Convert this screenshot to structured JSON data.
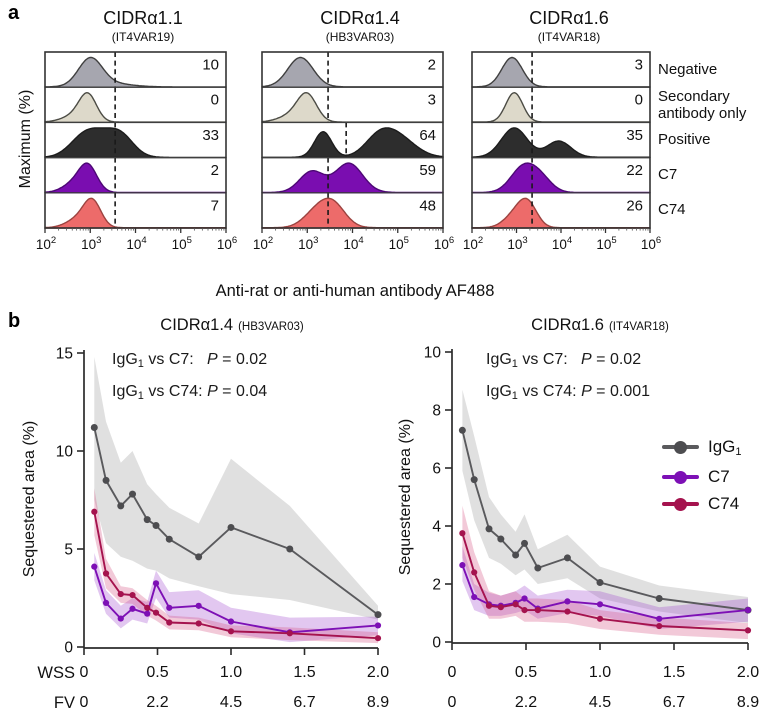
{
  "figure": {
    "panel_a_label": "a",
    "panel_b_label": "b"
  },
  "colors": {
    "igg": "#5a5a5d",
    "igg_marker": "#4d4d50",
    "c7": "#7d10b5",
    "c74": "#a5134e",
    "igg_band": "rgba(178,178,178,0.40)",
    "c7_band": "rgba(158,70,205,0.30)",
    "c74_band": "rgba(214,88,134,0.32)",
    "hist_rows": [
      {
        "fill": "#a6a6af",
        "stroke": "#3f3f3f"
      },
      {
        "fill": "#ddd9ca",
        "stroke": "#4c4c45"
      },
      {
        "fill": "#2d2d2d",
        "stroke": "#1c1c1c"
      },
      {
        "fill": "#7a0db0",
        "stroke": "#4d0875"
      },
      {
        "fill": "#ed6b6a",
        "stroke": "#9c4340"
      }
    ],
    "gate_line": "#1a1a1a",
    "axis": "#2b2b2b"
  },
  "panel_a": {
    "y_label": "Maximum (%)",
    "x_label": "Anti-rat or anti-human antibody AF488",
    "row_labels": [
      "Negative",
      "Secondary antibody only",
      "Positive",
      "C7",
      "C74"
    ],
    "x_tick_base": "10",
    "x_tick_exponents": [
      2,
      3,
      4,
      5,
      6
    ]
  },
  "panel_b": {
    "wss_label": "WSS",
    "fv_label": "FV",
    "legend": [
      {
        "label": "IgG",
        "sub": "1",
        "color_key": "igg"
      },
      {
        "label": "C7",
        "sub": "",
        "color_key": "c7"
      },
      {
        "label": "C74",
        "sub": "",
        "color_key": "c74"
      }
    ]
  },
  "chart_data": [
    {
      "type": "area",
      "subtype": "flow-cytometry-histogram",
      "title": "CIDRα1.1",
      "title_sub": "(IT4VAR19)",
      "x_scale": "log10",
      "x_range": [
        100,
        1000000
      ],
      "gate_exp": 3.55,
      "rows": [
        {
          "label": "Negative",
          "percent": "10",
          "peaks": [
            [
              3.0,
              0.26,
              1.0
            ],
            [
              3.4,
              0.45,
              0.14
            ]
          ]
        },
        {
          "label": "Secondary antibody only",
          "percent": "0",
          "peaks": [
            [
              2.95,
              0.19,
              1.0
            ],
            [
              2.68,
              0.28,
              0.28
            ]
          ]
        },
        {
          "label": "Positive",
          "percent": "33",
          "peaks": [
            [
              2.85,
              0.32,
              0.9
            ],
            [
              3.3,
              0.38,
              0.97
            ],
            [
              3.7,
              0.28,
              0.8
            ]
          ]
        },
        {
          "label": "C7",
          "percent": "2",
          "peaks": [
            [
              2.95,
              0.2,
              1.0
            ],
            [
              2.62,
              0.24,
              0.32
            ]
          ]
        },
        {
          "label": "C74",
          "percent": "7",
          "peaks": [
            [
              3.05,
              0.19,
              1.0
            ],
            [
              2.75,
              0.26,
              0.38
            ]
          ]
        }
      ]
    },
    {
      "type": "area",
      "subtype": "flow-cytometry-histogram",
      "title": "CIDRα1.4",
      "title_sub": "(HB3VAR03)",
      "x_scale": "log10",
      "x_range": [
        100,
        1000000
      ],
      "gate_exp": 3.46,
      "gate_exp_positive": 3.86,
      "rows": [
        {
          "label": "Negative",
          "percent": "2",
          "peaks": [
            [
              2.85,
              0.28,
              1.0
            ]
          ]
        },
        {
          "label": "Secondary antibody only",
          "percent": "3",
          "peaks": [
            [
              3.0,
              0.21,
              1.0
            ],
            [
              2.7,
              0.3,
              0.3
            ]
          ]
        },
        {
          "label": "Positive",
          "percent": "64",
          "peaks": [
            [
              3.35,
              0.19,
              1.0
            ],
            [
              4.95,
              0.4,
              0.85
            ],
            [
              4.55,
              0.3,
              0.5
            ]
          ]
        },
        {
          "label": "C7",
          "percent": "59",
          "peaks": [
            [
              3.1,
              0.27,
              0.72
            ],
            [
              3.92,
              0.3,
              1.0
            ]
          ]
        },
        {
          "label": "C74",
          "percent": "48",
          "peaks": [
            [
              3.55,
              0.28,
              1.0
            ],
            [
              3.15,
              0.27,
              0.5
            ]
          ]
        }
      ]
    },
    {
      "type": "area",
      "subtype": "flow-cytometry-histogram",
      "title": "CIDRα1.6",
      "title_sub": "(IT4VAR18)",
      "x_scale": "log10",
      "x_range": [
        100,
        1000000
      ],
      "gate_exp": 3.35,
      "rows": [
        {
          "label": "Negative",
          "percent": "3",
          "peaks": [
            [
              2.9,
              0.23,
              1.0
            ]
          ]
        },
        {
          "label": "Secondary antibody only",
          "percent": "0",
          "peaks": [
            [
              2.95,
              0.19,
              1.0
            ]
          ]
        },
        {
          "label": "Positive",
          "percent": "35",
          "peaks": [
            [
              2.95,
              0.29,
              1.0
            ],
            [
              3.95,
              0.27,
              0.55
            ]
          ]
        },
        {
          "label": "C7",
          "percent": "22",
          "peaks": [
            [
              3.15,
              0.28,
              1.0
            ],
            [
              3.55,
              0.25,
              0.5
            ]
          ]
        },
        {
          "label": "C74",
          "percent": "26",
          "peaks": [
            [
              3.25,
              0.21,
              1.0
            ],
            [
              2.95,
              0.24,
              0.5
            ]
          ]
        }
      ]
    },
    {
      "type": "line",
      "title": "CIDRα1.4",
      "title_sub": "(HB3VAR03)",
      "ylabel": "Sequestered area (%)",
      "ylim": [
        0,
        15
      ],
      "y_ticks": [
        0,
        5,
        10,
        15
      ],
      "x_wss": [
        0.07,
        0.15,
        0.25,
        0.33,
        0.43,
        0.49,
        0.58,
        0.78,
        1.0,
        1.4,
        2.0
      ],
      "wss_ticks": [
        "0",
        "0.5",
        "1.0",
        "1.5",
        "2.0"
      ],
      "fv_ticks": [
        "0",
        "2.2",
        "4.5",
        "6.7",
        "8.9"
      ],
      "annotations": [
        {
          "lhs": "IgG",
          "lhs_sub": "1",
          "mid": " vs C7:   ",
          "p": "P",
          "rhs": " = 0.02"
        },
        {
          "lhs": "IgG",
          "lhs_sub": "1",
          "mid": " vs C74: ",
          "p": "P",
          "rhs": " = 0.04"
        }
      ],
      "series": [
        {
          "name": "IgG1",
          "color_key": "igg",
          "band_key": "igg_band",
          "values": [
            11.2,
            8.5,
            7.2,
            7.8,
            6.5,
            6.2,
            5.5,
            4.6,
            6.1,
            5.0,
            1.65
          ],
          "band_upper": [
            14.8,
            11.5,
            9.4,
            10.0,
            8.3,
            7.8,
            7.1,
            6.3,
            9.6,
            7.2,
            2.1
          ],
          "band_lower": [
            7.5,
            5.3,
            4.6,
            4.4,
            4.0,
            3.9,
            3.5,
            3.1,
            2.7,
            2.4,
            1.4
          ]
        },
        {
          "name": "C7",
          "color_key": "c7",
          "band_key": "c7_band",
          "values": [
            4.1,
            2.25,
            1.45,
            1.95,
            1.7,
            3.25,
            2.0,
            2.1,
            1.3,
            0.75,
            1.1
          ],
          "band_upper": [
            4.8,
            2.9,
            2.1,
            2.5,
            2.3,
            3.9,
            2.8,
            2.9,
            2.0,
            1.5,
            1.55
          ],
          "band_lower": [
            3.4,
            1.7,
            0.95,
            1.4,
            1.2,
            2.5,
            1.5,
            1.4,
            0.7,
            0.25,
            0.6
          ]
        },
        {
          "name": "C74",
          "color_key": "c74",
          "band_key": "c74_band",
          "values": [
            6.9,
            3.75,
            2.7,
            2.65,
            2.0,
            1.75,
            1.25,
            1.2,
            0.8,
            0.7,
            0.45
          ],
          "band_upper": [
            8.1,
            4.5,
            3.1,
            3.0,
            2.4,
            2.1,
            1.6,
            1.5,
            1.1,
            1.0,
            0.75
          ],
          "band_lower": [
            5.7,
            3.0,
            2.25,
            2.2,
            1.6,
            1.35,
            0.9,
            0.85,
            0.5,
            0.35,
            0.2
          ]
        }
      ]
    },
    {
      "type": "line",
      "title": "CIDRα1.6",
      "title_sub": "(IT4VAR18)",
      "ylabel": "Sequestered area (%)",
      "ylim": [
        0,
        10
      ],
      "y_ticks": [
        0,
        2,
        4,
        6,
        8,
        10
      ],
      "x_wss": [
        0.07,
        0.15,
        0.25,
        0.33,
        0.43,
        0.49,
        0.58,
        0.78,
        1.0,
        1.4,
        2.0
      ],
      "wss_ticks": [
        "0",
        "0.5",
        "1.0",
        "1.5",
        "2.0"
      ],
      "fv_ticks": [
        "0",
        "2.2",
        "4.5",
        "6.7",
        "8.9"
      ],
      "annotations": [
        {
          "lhs": "IgG",
          "lhs_sub": "1",
          "mid": " vs C7:   ",
          "p": "P",
          "rhs": " = 0.02"
        },
        {
          "lhs": "IgG",
          "lhs_sub": "1",
          "mid": " vs C74: ",
          "p": "P",
          "rhs": " = 0.001"
        }
      ],
      "series": [
        {
          "name": "IgG1",
          "color_key": "igg",
          "band_key": "igg_band",
          "values": [
            7.3,
            5.6,
            3.9,
            3.55,
            3.0,
            3.4,
            2.55,
            2.9,
            2.05,
            1.5,
            1.1
          ],
          "band_upper": [
            8.7,
            7.1,
            5.0,
            4.4,
            3.8,
            4.4,
            3.2,
            3.7,
            2.6,
            1.95,
            1.55
          ],
          "band_lower": [
            5.9,
            4.2,
            2.9,
            2.7,
            2.3,
            2.5,
            2.0,
            2.2,
            1.5,
            1.05,
            0.65
          ]
        },
        {
          "name": "C7",
          "color_key": "c7",
          "band_key": "c7_band",
          "values": [
            2.65,
            1.55,
            1.3,
            1.25,
            1.35,
            1.5,
            1.15,
            1.4,
            1.3,
            0.8,
            1.1
          ],
          "band_upper": [
            3.3,
            2.0,
            1.7,
            1.6,
            1.75,
            1.95,
            1.6,
            1.8,
            1.75,
            1.2,
            1.5
          ],
          "band_lower": [
            2.1,
            1.1,
            0.9,
            0.9,
            1.0,
            1.1,
            0.8,
            1.0,
            0.9,
            0.45,
            0.7
          ]
        },
        {
          "name": "C74",
          "color_key": "c74",
          "band_key": "c74_band",
          "values": [
            3.75,
            2.4,
            1.25,
            1.2,
            1.3,
            1.1,
            1.1,
            1.05,
            0.8,
            0.55,
            0.4
          ],
          "band_upper": [
            4.7,
            3.1,
            1.75,
            1.6,
            1.75,
            1.5,
            1.5,
            1.45,
            1.1,
            0.85,
            0.65
          ],
          "band_lower": [
            2.9,
            1.8,
            0.8,
            0.8,
            0.9,
            0.7,
            0.7,
            0.65,
            0.45,
            0.25,
            0.1
          ]
        }
      ]
    }
  ]
}
